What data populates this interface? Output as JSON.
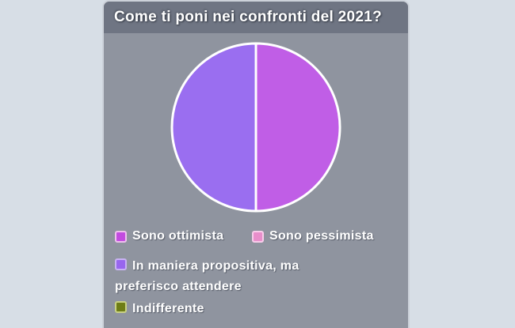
{
  "page": {
    "background": "#d7dee6"
  },
  "widget": {
    "title": "Come ti poni nei confronti del 2021?",
    "header_bg": "#6f7583",
    "body_bg": "#8f949f",
    "border_color": "#cdd2da"
  },
  "chart_data": {
    "type": "pie",
    "title": "Come ti poni nei confronti del 2021?",
    "legend_position": "bottom",
    "categories": [
      "Sono ottimista",
      "Sono pessimista",
      "In maniera propositiva, ma preferisco attendere",
      "Indifferente"
    ],
    "values_percent": [
      50,
      0,
      50,
      0
    ],
    "colors": [
      "#c05ee6",
      "#e88ecb",
      "#9a6ef0",
      "#6e7d15"
    ],
    "start_angle_deg": -90,
    "direction": "clockwise",
    "slice_border_color": "#ffffff"
  },
  "legend": {
    "items": [
      {
        "label": "Sono ottimista",
        "fill": "#c24be0",
        "border": "#eec0ee"
      },
      {
        "label": "Sono pessimista",
        "fill": "#e88ecb",
        "border": "#f8cdeb"
      },
      {
        "label": "In maniera propositiva, ma preferisco attendere",
        "fill": "#9866ef",
        "border": "#c9b2f4"
      },
      {
        "label": "Indifferente",
        "fill": "#6e7d15",
        "border": "#c9d184"
      }
    ]
  }
}
